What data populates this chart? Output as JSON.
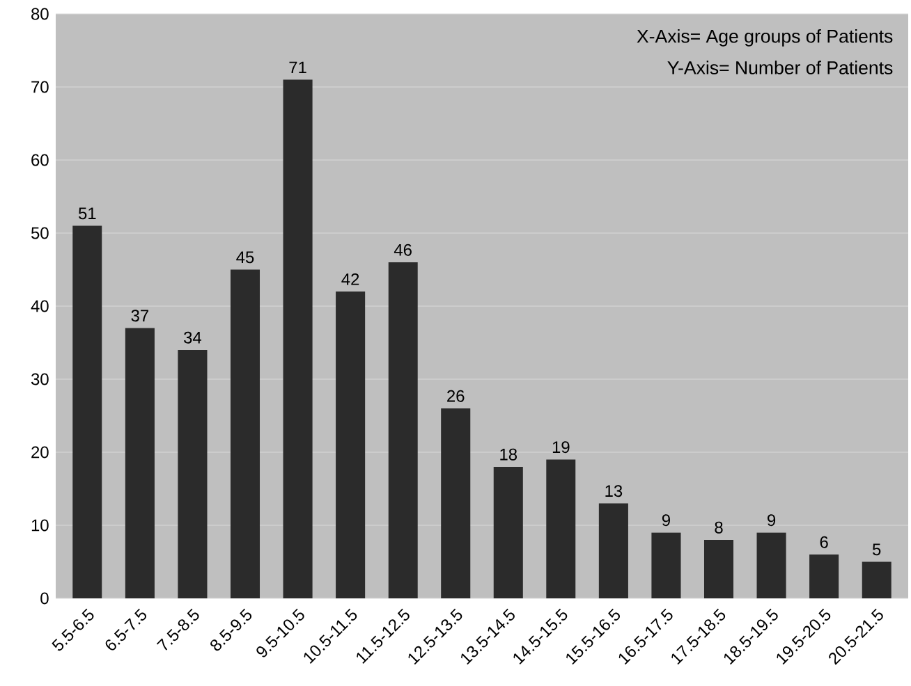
{
  "chart_data": {
    "type": "bar",
    "categories": [
      "5.5-6.5",
      "6.5-7.5",
      "7.5-8.5",
      "8.5-9.5",
      "9.5-10.5",
      "10.5-11.5",
      "11.5-12.5",
      "12.5-13.5",
      "13.5-14.5",
      "14.5-15.5",
      "15.5-16.5",
      "16.5-17.5",
      "17.5-18.5",
      "18.5-19.5",
      "19.5-20.5",
      "20.5-21.5"
    ],
    "values": [
      51,
      37,
      34,
      45,
      71,
      42,
      46,
      26,
      18,
      19,
      13,
      9,
      8,
      9,
      6,
      5
    ],
    "color": "#2b2b2b",
    "ylim": [
      0,
      80
    ],
    "yticks": [
      0,
      10,
      20,
      30,
      40,
      50,
      60,
      70,
      80
    ],
    "grid": "y",
    "data_labels": true,
    "annotations": [
      "X-Axis= Age groups of Patients",
      "Y-Axis= Number of Patients"
    ]
  }
}
